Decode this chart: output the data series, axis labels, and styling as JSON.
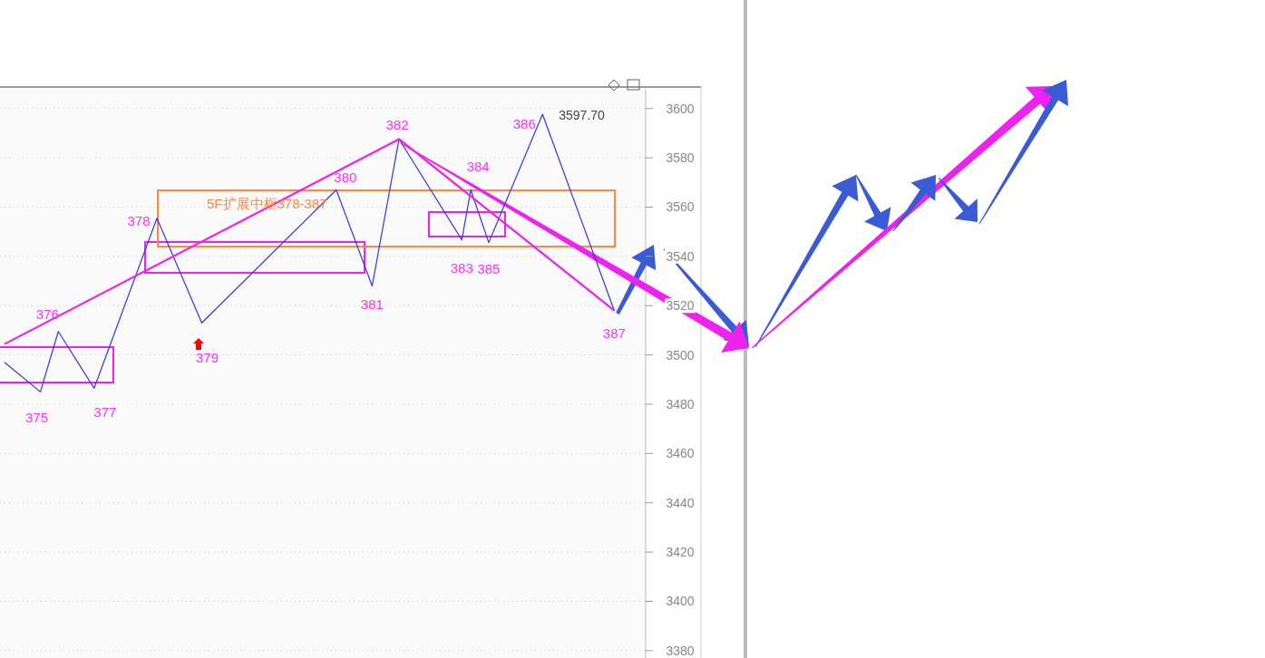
{
  "chart_data": {
    "type": "line",
    "categories": [
      null,
      null,
      null,
      null,
      null,
      null,
      null,
      null,
      null,
      null,
      null,
      null,
      null,
      null,
      null,
      null,
      null,
      null,
      null,
      null,
      null,
      null,
      null,
      null,
      null,
      null,
      null,
      null,
      null,
      null,
      null,
      null,
      null,
      null,
      null,
      null,
      null,
      null,
      null,
      null,
      null,
      null,
      null,
      null,
      null,
      null,
      null,
      null,
      null,
      null,
      null,
      null,
      null,
      null,
      null,
      null,
      null,
      null,
      null,
      null,
      null,
      null,
      null,
      null,
      null,
      null,
      null,
      null,
      null,
      null,
      null,
      null
    ],
    "ylim": [
      3377,
      3608
    ],
    "yticks": [
      3380,
      3400,
      3420,
      3440,
      3460,
      3480,
      3500,
      3520,
      3540,
      3560,
      3580,
      3600
    ],
    "grid": "y",
    "series": [
      {
        "color": "#3333ee",
        "values": [
          3497,
          null,
          null,
          null,
          3485,
          null,
          3509.5,
          null,
          null,
          null,
          3486.5,
          null,
          null,
          null,
          null,
          null,
          null,
          3555.5,
          null,
          null,
          null,
          null,
          3513,
          null,
          null,
          null,
          null,
          null,
          null,
          null,
          null,
          null,
          null,
          null,
          null,
          null,
          null,
          3567,
          null,
          null,
          null,
          3528,
          null,
          null,
          3587.6,
          null,
          null,
          null,
          null,
          null,
          null,
          3546.7,
          3567,
          null,
          3545.6,
          null,
          null,
          null,
          null,
          null,
          3597.7,
          null,
          null,
          null,
          null,
          null,
          null,
          null,
          3518,
          null,
          null,
          null
        ]
      },
      {
        "color": "#ee22ee",
        "values": [
          3504.4,
          null,
          null,
          null,
          null,
          null,
          null,
          null,
          null,
          null,
          null,
          null,
          null,
          null,
          null,
          null,
          null,
          null,
          null,
          null,
          null,
          null,
          null,
          null,
          null,
          null,
          null,
          null,
          null,
          null,
          null,
          null,
          null,
          null,
          null,
          null,
          null,
          null,
          null,
          null,
          null,
          null,
          null,
          null,
          3587.6,
          null,
          null,
          null,
          null,
          null,
          null,
          null,
          null,
          null,
          null,
          null,
          null,
          null,
          null,
          null,
          null,
          null,
          null,
          null,
          null,
          null,
          null,
          null,
          3518,
          null,
          null,
          null
        ]
      }
    ],
    "annotations": [
      "375",
      "376",
      "377",
      "378",
      "379",
      "380",
      "381",
      "382",
      "383",
      "384",
      "385",
      "386",
      "387",
      "3597.70",
      "5F扩展中枢378-387"
    ]
  }
}
